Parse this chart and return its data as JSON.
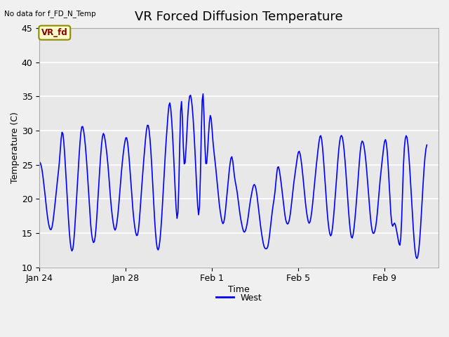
{
  "title": "VR Forced Diffusion Temperature",
  "xlabel": "Time",
  "ylabel": "Temperature (C)",
  "top_left_text": "No data for f_FD_N_Temp",
  "legend_label": "West",
  "line_color": "#0000FF",
  "background_color": "#E8E8E8",
  "plot_bg_color": "#E8E8E8",
  "ylim": [
    10,
    45
  ],
  "yticks": [
    10,
    15,
    20,
    25,
    30,
    35,
    40,
    45
  ],
  "grid_color": "#FFFFFF",
  "vr_fd_label": "VR_fd",
  "vr_fd_bg": "#FFFFCC",
  "vr_fd_text_color": "#8B0000",
  "title_fontsize": 13,
  "axis_label_fontsize": 9,
  "tick_fontsize": 9
}
